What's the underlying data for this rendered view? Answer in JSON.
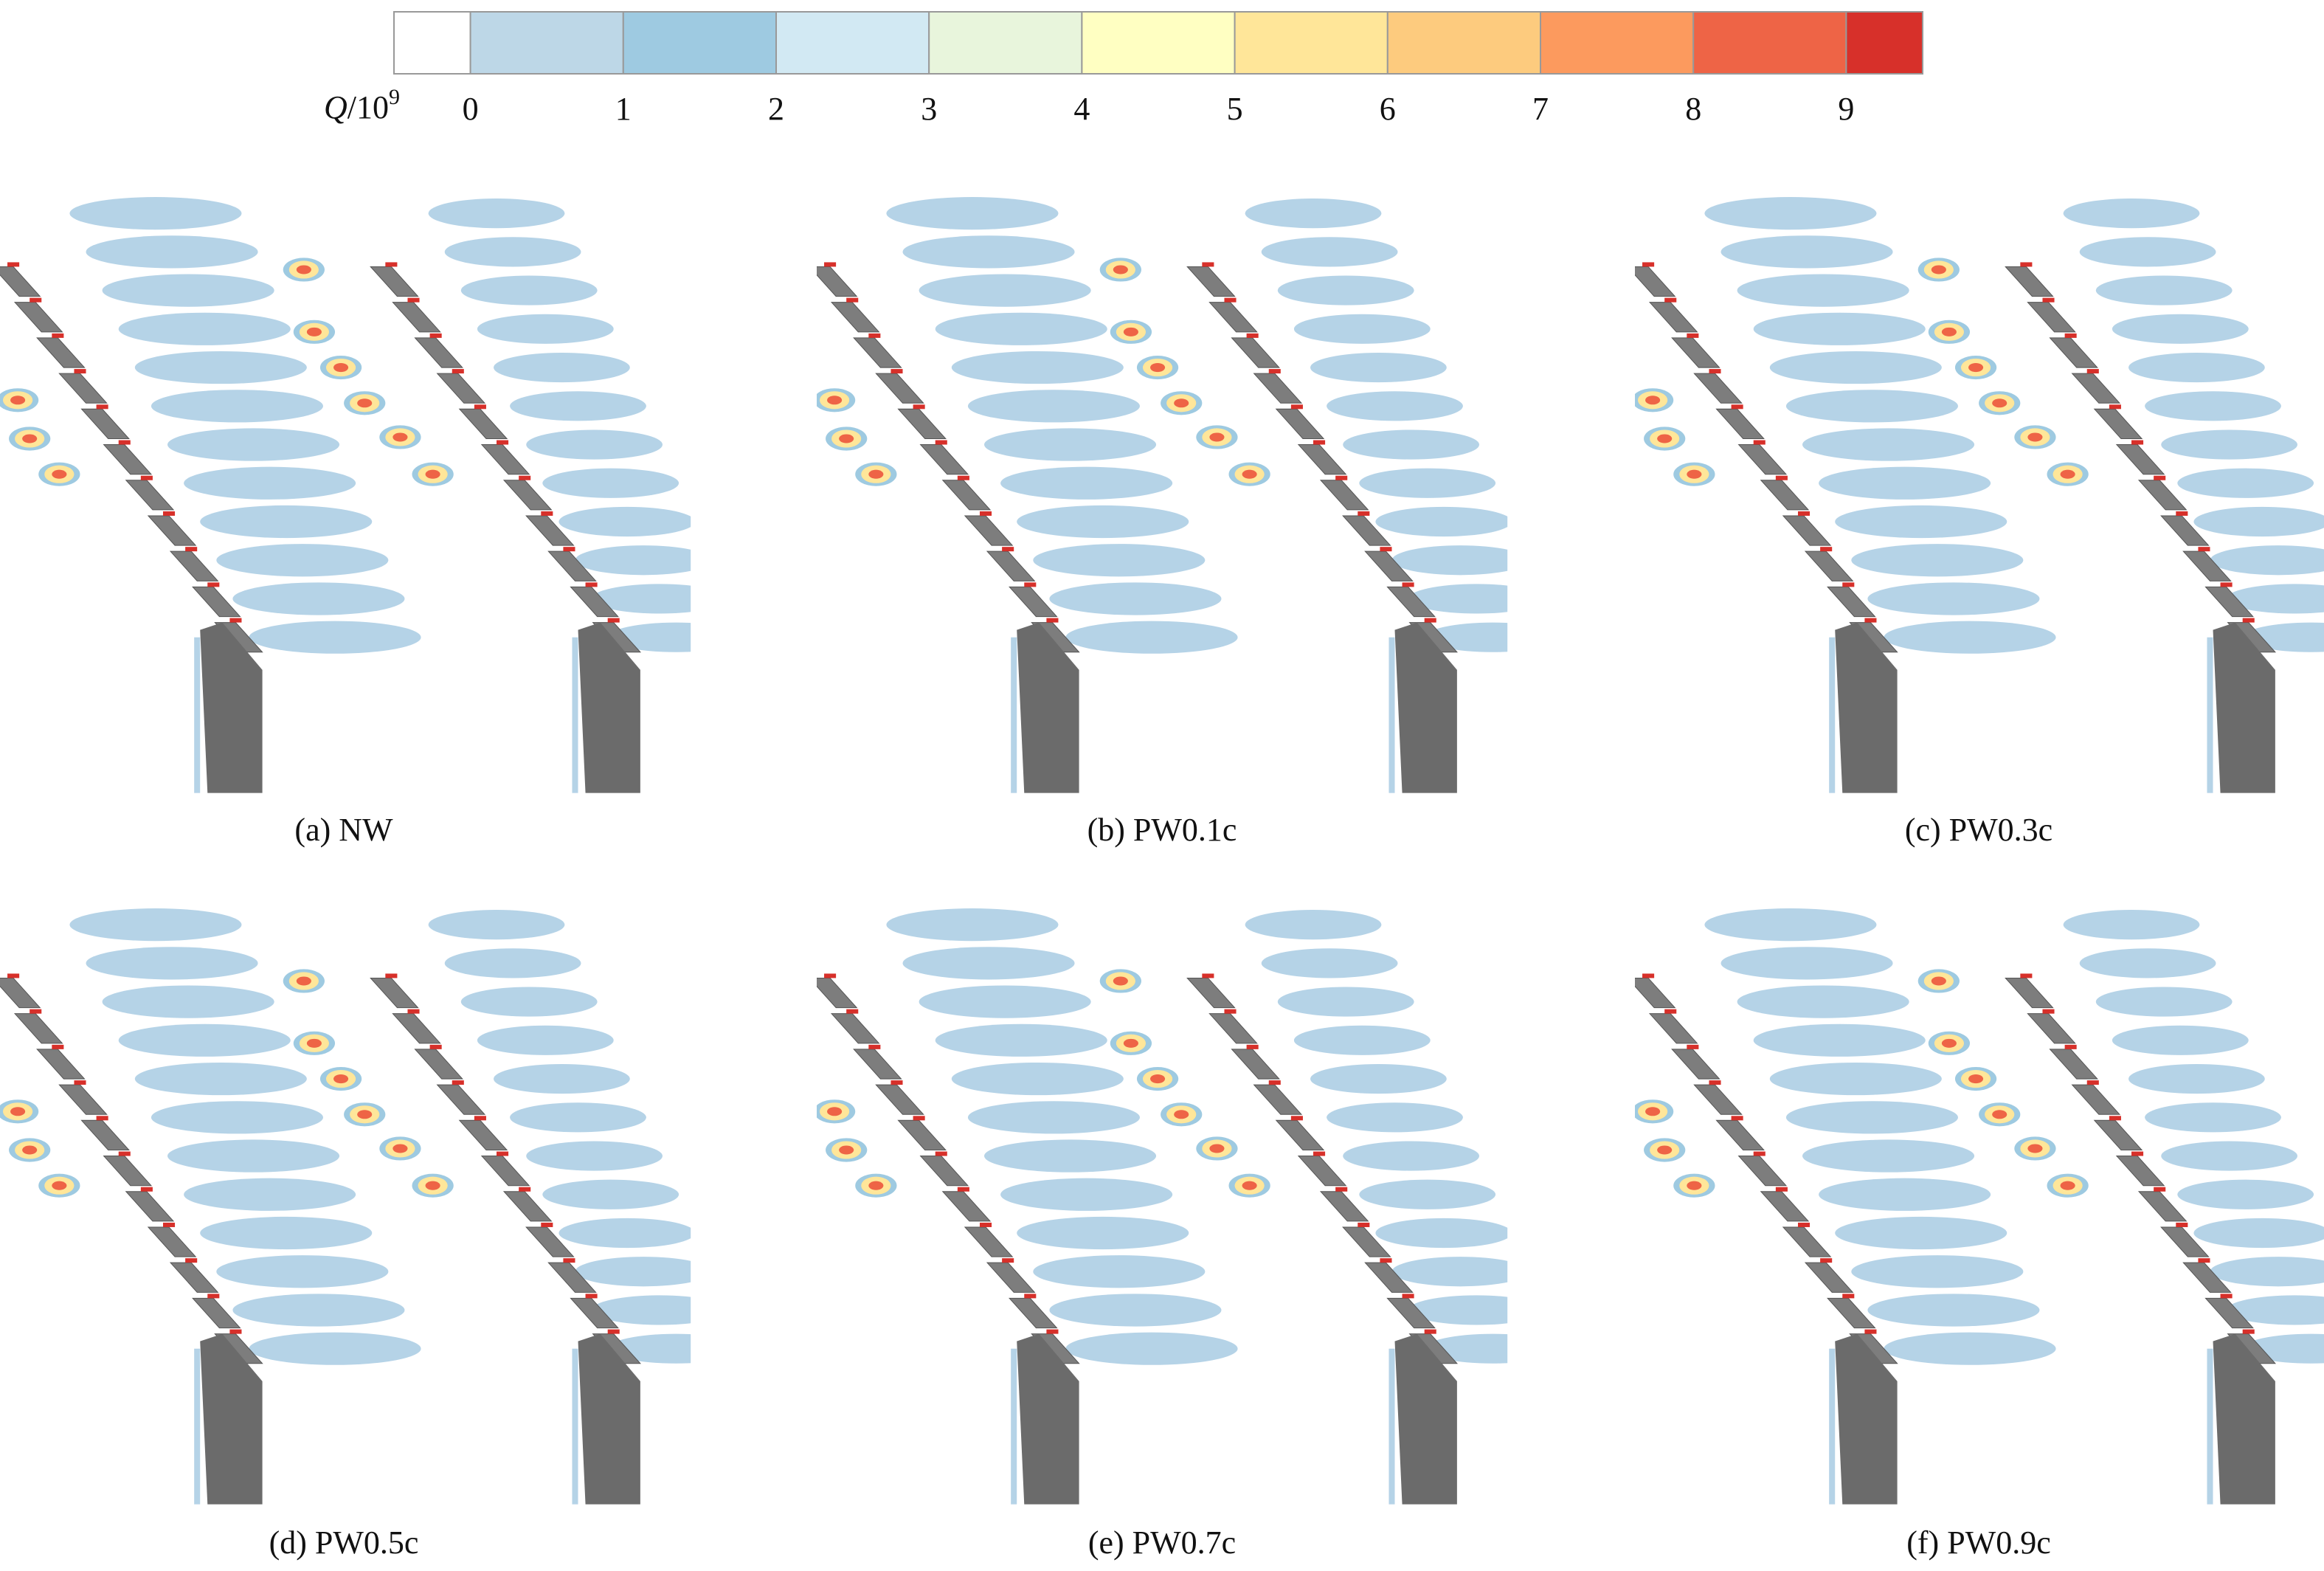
{
  "colorbar": {
    "label_symbol": "Q",
    "label_rest": "/10",
    "label_exponent": "9",
    "ticks": [
      0,
      1,
      2,
      3,
      4,
      5,
      6,
      7,
      8,
      9
    ],
    "lim": [
      -0.5,
      9.5
    ],
    "colors": [
      "#ffffff",
      "#bdd7e7",
      "#9ecae1",
      "#d2e9f3",
      "#e8f5dc",
      "#ffffc2",
      "#ffe699",
      "#fdcb7e",
      "#fc9a5e",
      "#ee6446",
      "#d7302a"
    ]
  },
  "panels": [
    {
      "caption": "(a) NW"
    },
    {
      "caption": "(b) PW0.1c"
    },
    {
      "caption": "(c) PW0.3c"
    },
    {
      "caption": "(d) PW0.5c"
    },
    {
      "caption": "(e) PW0.7c"
    },
    {
      "caption": "(f) PW0.9c"
    }
  ]
}
